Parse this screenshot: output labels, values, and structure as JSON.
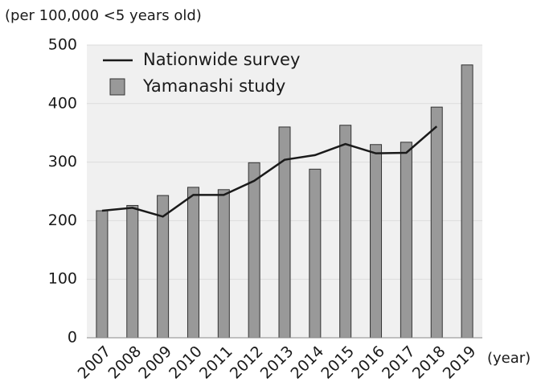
{
  "chart_data": {
    "type": "bar",
    "y_label": "(per 100,000 <5 years old)",
    "x_label": "(year)",
    "categories": [
      "2007",
      "2008",
      "2009",
      "2010",
      "2011",
      "2012",
      "2013",
      "2014",
      "2015",
      "2016",
      "2017",
      "2018",
      "2019"
    ],
    "series": [
      {
        "name": "Nationwide survey",
        "type": "line",
        "color": "#1a1a1a",
        "values": [
          217,
          222,
          207,
          244,
          244,
          268,
          304,
          312,
          331,
          315,
          316,
          361,
          null
        ]
      },
      {
        "name": "Yamanashi study",
        "type": "bar",
        "color": "#999999",
        "values": [
          217,
          226,
          243,
          257,
          253,
          299,
          360,
          288,
          363,
          330,
          334,
          394,
          466
        ]
      }
    ],
    "ylim": [
      0,
      500
    ],
    "yticks": [
      0,
      100,
      200,
      300,
      400,
      500
    ],
    "grid": true,
    "legend": "upper left"
  }
}
